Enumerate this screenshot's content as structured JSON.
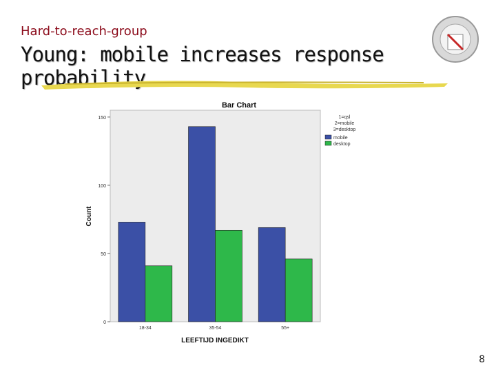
{
  "slide": {
    "subtitle": "Hard-to-reach-group",
    "title": "Young: mobile increases response probability",
    "page_number": "8"
  },
  "colors": {
    "mobile": "#3b50a6",
    "desktop": "#2eb84a",
    "plot_bg": "#ececec"
  },
  "chart_data": {
    "type": "bar",
    "title": "Bar Chart",
    "xlabel": "LEEFTIJD INGEDIKT",
    "ylabel": "Count",
    "categories": [
      "18-34",
      "35-54",
      "55+"
    ],
    "series": [
      {
        "name": "mobile",
        "values": [
          73,
          143,
          69
        ]
      },
      {
        "name": "desktop",
        "values": [
          41,
          67,
          46
        ]
      }
    ],
    "ylim": [
      0,
      155
    ],
    "yticks": [
      0,
      50,
      100,
      150
    ],
    "legend_title": [
      "1=qsl",
      "2=mobile",
      "3=desktop"
    ],
    "legend_position": "right"
  }
}
